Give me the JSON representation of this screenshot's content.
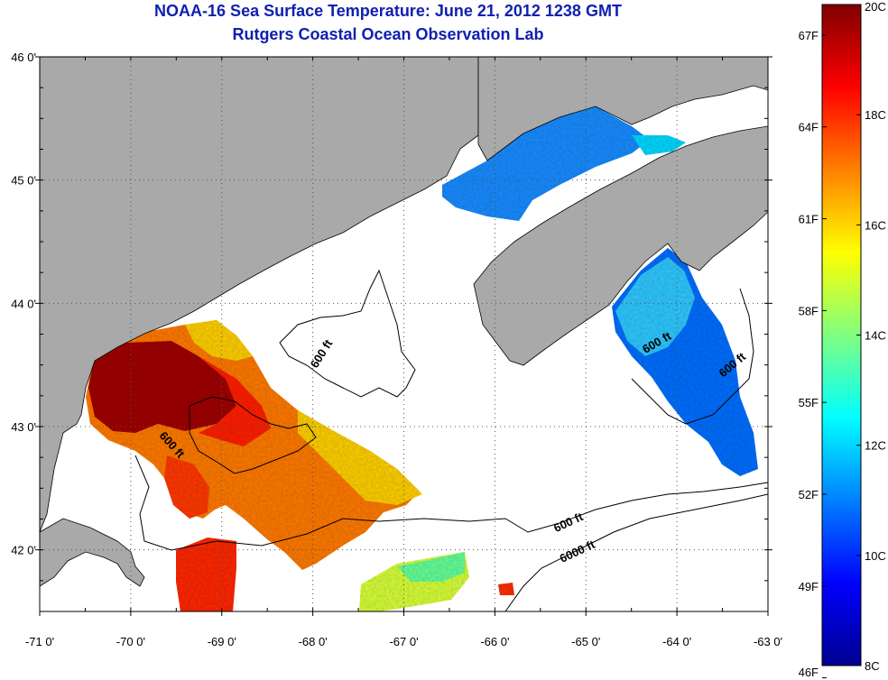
{
  "title_line1": "NOAA-16 Sea Surface Temperature:  June 21, 2012 1238 GMT",
  "title_line2": "Rutgers Coastal Ocean Observation Lab",
  "map": {
    "lon_range": [
      -71,
      -63
    ],
    "lat_range": [
      41.5,
      46
    ],
    "lon_ticks": [
      {
        "value": -71,
        "label": "-71 0'"
      },
      {
        "value": -70,
        "label": "-70 0'"
      },
      {
        "value": -69,
        "label": "-69 0'"
      },
      {
        "value": -68,
        "label": "-68 0'"
      },
      {
        "value": -67,
        "label": "-67 0'"
      },
      {
        "value": -66,
        "label": "-66 0'"
      },
      {
        "value": -65,
        "label": "-65 0'"
      },
      {
        "value": -64,
        "label": "-64 0'"
      },
      {
        "value": -63,
        "label": "-63 0'"
      }
    ],
    "lat_ticks": [
      {
        "value": 46,
        "label": "46 0'"
      },
      {
        "value": 45,
        "label": "45 0'"
      },
      {
        "value": 44,
        "label": "44 0'"
      },
      {
        "value": 43,
        "label": "43 0'"
      },
      {
        "value": 42,
        "label": "42 0'"
      }
    ],
    "grid": "dotted",
    "contour_labels": [
      "600 ft",
      "600 ft",
      "600 ft",
      "600 ft",
      "600 ft",
      "6000 ft"
    ],
    "colors": {
      "land": "#a9a9a9",
      "no_data": "#ffffff",
      "coast": "#000000"
    }
  },
  "colorbar": {
    "celsius": [
      {
        "value": 20,
        "label": "20C"
      },
      {
        "value": 18,
        "label": "18C"
      },
      {
        "value": 16,
        "label": "16C"
      },
      {
        "value": 14,
        "label": "14C"
      },
      {
        "value": 12,
        "label": "12C"
      },
      {
        "value": 10,
        "label": "10C"
      },
      {
        "value": 8,
        "label": "8C"
      }
    ],
    "fahrenheit": [
      {
        "value": 67,
        "label": "67F"
      },
      {
        "value": 64,
        "label": "64F"
      },
      {
        "value": 61,
        "label": "61F"
      },
      {
        "value": 58,
        "label": "58F"
      },
      {
        "value": 55,
        "label": "55F"
      },
      {
        "value": 52,
        "label": "52F"
      },
      {
        "value": 49,
        "label": "49F"
      },
      {
        "value": 46,
        "label": "46F"
      }
    ],
    "range_c": [
      8,
      20
    ],
    "colormap": [
      "#00008f",
      "#0000ff",
      "#0080ff",
      "#00ffff",
      "#80ff80",
      "#ffff00",
      "#ff8000",
      "#ff0000",
      "#800000"
    ]
  }
}
